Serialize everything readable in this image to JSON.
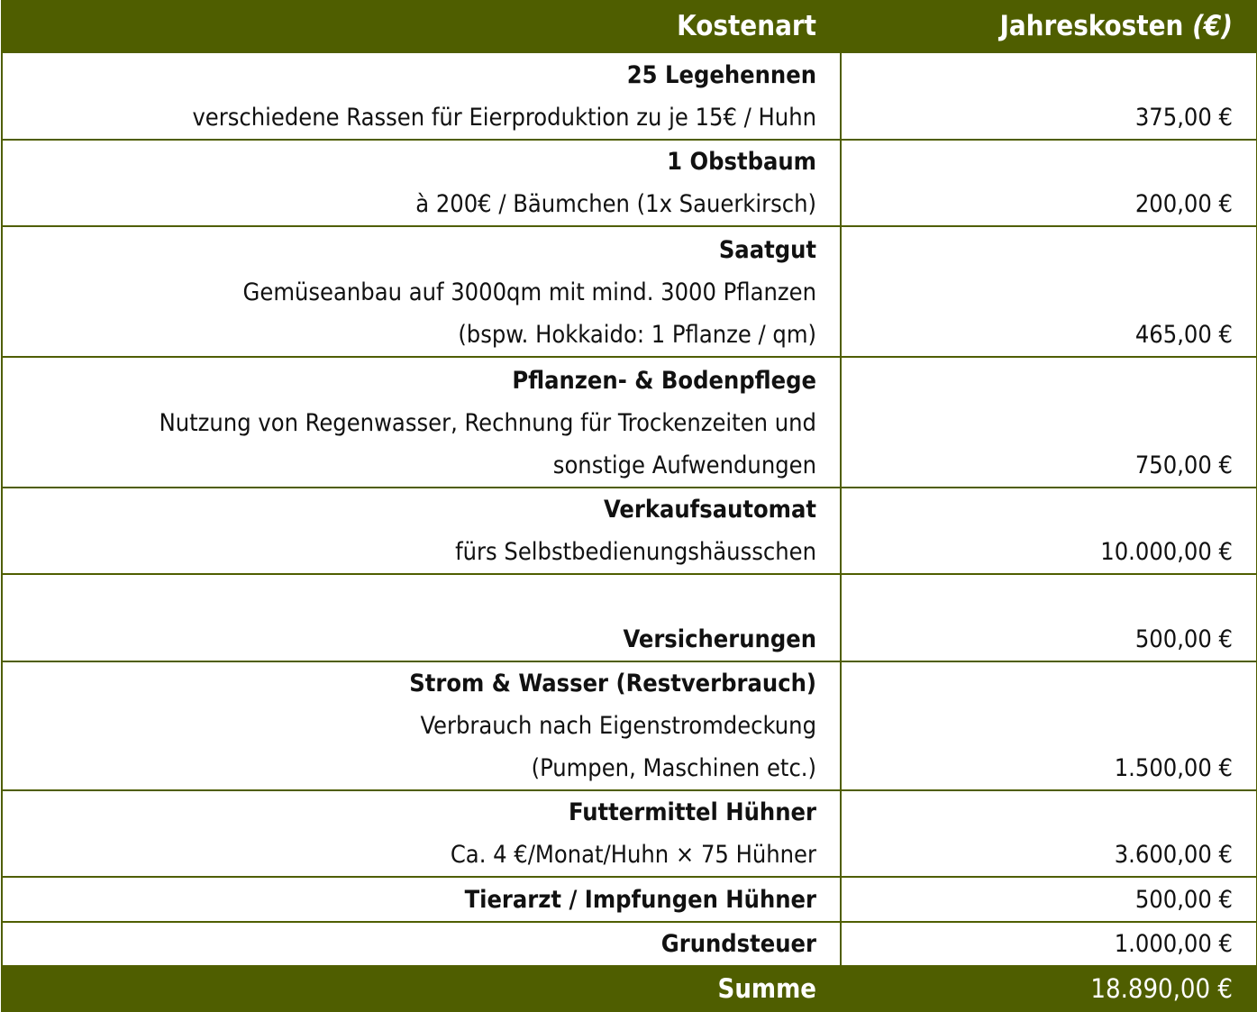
{
  "table": {
    "header": {
      "kostenart": "Kostenart",
      "jahreskosten": "Jahreskosten",
      "unit": "(€)"
    },
    "rows": [
      {
        "title": "25 Legehennen",
        "details": [
          "verschiedene Rassen für Eierproduktion zu je 15€ / Huhn"
        ],
        "cost": "375,00 €"
      },
      {
        "title": "1 Obstbaum",
        "details": [
          "à 200€ / Bäumchen (1x Sauerkirsch)"
        ],
        "cost": "200,00 €"
      },
      {
        "title": "Saatgut",
        "details": [
          "Gemüseanbau auf 3000qm mit mind. 3000 Pflanzen",
          "(bspw. Hokkaido: 1 Pflanze / qm)"
        ],
        "cost": "465,00 €"
      },
      {
        "title": "Pflanzen- & Bodenpflege",
        "details": [
          "Nutzung von Regenwasser, Rechnung für Trockenzeiten und",
          "sonstige Aufwendungen"
        ],
        "cost": "750,00 €"
      },
      {
        "title": "Verkaufsautomat",
        "details": [
          "fürs Selbstbedienungshäusschen"
        ],
        "cost": "10.000,00 €"
      },
      {
        "title": "Versicherungen",
        "cost": "500,00 €"
      },
      {
        "title": "Strom & Wasser (Restverbrauch)",
        "details": [
          "Verbrauch nach Eigenstromdeckung",
          "(Pumpen, Maschinen etc.)"
        ],
        "cost": "1.500,00 €"
      },
      {
        "title": "Futtermittel Hühner",
        "details": [
          "Ca. 4 €/Monat/Huhn × 75 Hühner"
        ],
        "cost": "3.600,00 €"
      },
      {
        "title": "Tierarzt / Impfungen Hühner",
        "cost": "500,00 €"
      },
      {
        "title": "Grundsteuer",
        "cost": "1.000,00 €"
      }
    ],
    "total": {
      "label": "Summe",
      "cost": "18.890,00 €"
    }
  }
}
